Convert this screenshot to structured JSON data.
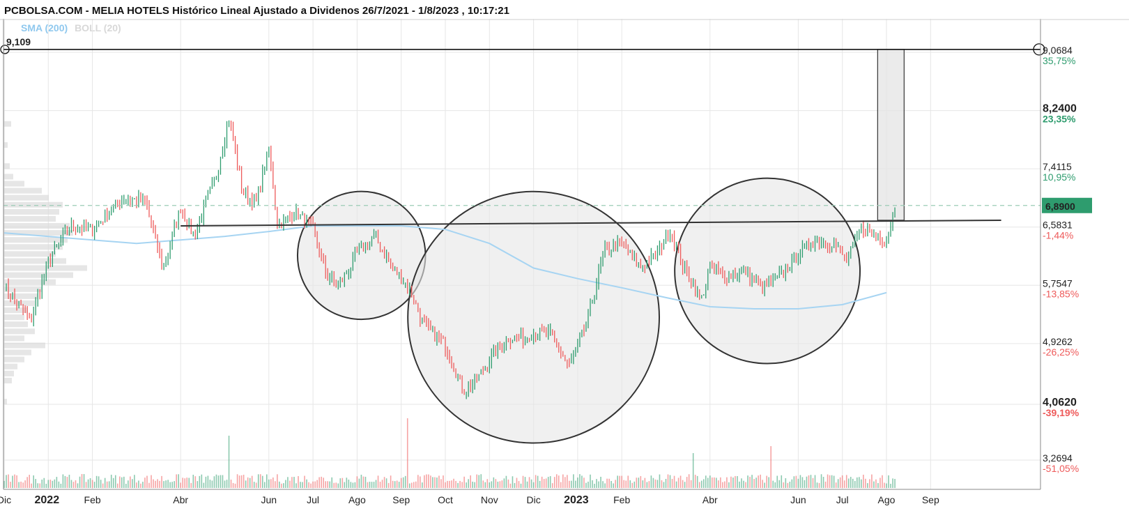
{
  "header": {
    "title": "PCBOLSA.COM - MELIA HOTELS Histórico Lineal Ajustado a Dividenos 26/7/2021 - 1/8/2023 , 10:17:21",
    "sma_label": "SMA (200)",
    "boll_label": "BOLL (20)"
  },
  "colors": {
    "up": "#2e9c6e",
    "down": "#ee5a5a",
    "sma": "#a6d4f2",
    "grid": "#e6e6e6",
    "price_tag": "#2e9c6e"
  },
  "chart_data": {
    "type": "candlestick",
    "title": "MELIA HOTELS Histórico Lineal Ajustado a Dividenos 26/7/2021 - 1/8/2023",
    "y_scale": "linear",
    "ylim": [
      3.0,
      9.35
    ],
    "x_axis": {
      "ticks": [
        {
          "label": "Dic",
          "month": 0,
          "bold": false
        },
        {
          "label": "2022",
          "month": 1,
          "bold": true
        },
        {
          "label": "Feb",
          "month": 2,
          "bold": false
        },
        {
          "label": "Abr",
          "month": 4,
          "bold": false
        },
        {
          "label": "Jun",
          "month": 6,
          "bold": false
        },
        {
          "label": "Jul",
          "month": 7,
          "bold": false
        },
        {
          "label": "Ago",
          "month": 8,
          "bold": false
        },
        {
          "label": "Sep",
          "month": 9,
          "bold": false
        },
        {
          "label": "Oct",
          "month": 10,
          "bold": false
        },
        {
          "label": "Nov",
          "month": 11,
          "bold": false
        },
        {
          "label": "Dic",
          "month": 12,
          "bold": false
        },
        {
          "label": "2023",
          "month": 13,
          "bold": true
        },
        {
          "label": "Feb",
          "month": 14,
          "bold": false
        },
        {
          "label": "Abr",
          "month": 16,
          "bold": false
        },
        {
          "label": "Jun",
          "month": 18,
          "bold": false
        },
        {
          "label": "Jul",
          "month": 19,
          "bold": false
        },
        {
          "label": "Ago",
          "month": 20,
          "bold": false
        },
        {
          "label": "Sep",
          "month": 21,
          "bold": false
        }
      ]
    },
    "y_ticks": [
      {
        "value": 9.0684,
        "label": "9,0684",
        "pct": "35,75%",
        "bold": false
      },
      {
        "value": 8.24,
        "label": "8,2400",
        "pct": "23,35%",
        "bold": true
      },
      {
        "value": 7.4115,
        "label": "7,4115",
        "pct": "10,95%",
        "bold": false
      },
      {
        "value": 6.5831,
        "label": "6,5831",
        "pct": "-1,44%",
        "bold": false
      },
      {
        "value": 5.7547,
        "label": "5,7547",
        "pct": "-13,85%",
        "bold": false
      },
      {
        "value": 4.9262,
        "label": "4,9262",
        "pct": "-26,25%",
        "bold": false
      },
      {
        "value": 4.062,
        "label": "4,0620",
        "pct": "-39,19%",
        "bold": true
      },
      {
        "value": 3.2694,
        "label": "3,2694",
        "pct": "-51,05%",
        "bold": false
      }
    ],
    "last_price": {
      "value": 6.89,
      "label": "6,8900"
    },
    "target_level": {
      "value": 9.109,
      "label": "9,109"
    },
    "anchors": [
      {
        "month": 0.0,
        "close": 5.75
      },
      {
        "month": 0.6,
        "close": 5.25
      },
      {
        "month": 1.0,
        "close": 6.1
      },
      {
        "month": 1.5,
        "close": 6.6
      },
      {
        "month": 2.0,
        "close": 6.55
      },
      {
        "month": 2.7,
        "close": 7.0
      },
      {
        "month": 3.2,
        "close": 6.95
      },
      {
        "month": 3.6,
        "close": 6.0
      },
      {
        "month": 4.0,
        "close": 6.85
      },
      {
        "month": 4.3,
        "close": 6.45
      },
      {
        "month": 4.8,
        "close": 7.3
      },
      {
        "month": 5.1,
        "close": 8.15
      },
      {
        "month": 5.4,
        "close": 7.1
      },
      {
        "month": 5.7,
        "close": 6.9
      },
      {
        "month": 6.0,
        "close": 7.7
      },
      {
        "month": 6.2,
        "close": 6.6
      },
      {
        "month": 6.6,
        "close": 6.8
      },
      {
        "month": 7.0,
        "close": 6.55
      },
      {
        "month": 7.3,
        "close": 5.9
      },
      {
        "month": 7.6,
        "close": 5.75
      },
      {
        "month": 8.0,
        "close": 6.2
      },
      {
        "month": 8.4,
        "close": 6.45
      },
      {
        "month": 8.8,
        "close": 6.0
      },
      {
        "month": 9.2,
        "close": 5.7
      },
      {
        "month": 9.5,
        "close": 5.2
      },
      {
        "month": 10.0,
        "close": 4.9
      },
      {
        "month": 10.4,
        "close": 4.25
      },
      {
        "month": 10.7,
        "close": 4.4
      },
      {
        "month": 11.0,
        "close": 4.7
      },
      {
        "month": 11.4,
        "close": 5.0
      },
      {
        "month": 11.8,
        "close": 5.0
      },
      {
        "month": 12.0,
        "close": 5.1
      },
      {
        "month": 12.4,
        "close": 5.05
      },
      {
        "month": 12.8,
        "close": 4.6
      },
      {
        "month": 13.2,
        "close": 5.2
      },
      {
        "month": 13.6,
        "close": 6.25
      },
      {
        "month": 14.0,
        "close": 6.35
      },
      {
        "month": 14.4,
        "close": 6.0
      },
      {
        "month": 14.8,
        "close": 6.2
      },
      {
        "month": 15.1,
        "close": 6.55
      },
      {
        "month": 15.4,
        "close": 6.0
      },
      {
        "month": 15.8,
        "close": 5.55
      },
      {
        "month": 16.0,
        "close": 6.0
      },
      {
        "month": 16.4,
        "close": 5.9
      },
      {
        "month": 16.8,
        "close": 5.95
      },
      {
        "month": 17.2,
        "close": 5.7
      },
      {
        "month": 17.6,
        "close": 5.9
      },
      {
        "month": 18.0,
        "close": 6.2
      },
      {
        "month": 18.4,
        "close": 6.4
      },
      {
        "month": 18.8,
        "close": 6.35
      },
      {
        "month": 19.1,
        "close": 6.1
      },
      {
        "month": 19.4,
        "close": 6.55
      },
      {
        "month": 19.7,
        "close": 6.5
      },
      {
        "month": 20.0,
        "close": 6.4
      },
      {
        "month": 20.2,
        "close": 6.89
      }
    ],
    "sma_200": [
      {
        "month": 0.0,
        "value": 6.5
      },
      {
        "month": 2.0,
        "value": 6.4
      },
      {
        "month": 3.0,
        "value": 6.35
      },
      {
        "month": 4.0,
        "value": 6.4
      },
      {
        "month": 5.0,
        "value": 6.45
      },
      {
        "month": 6.0,
        "value": 6.52
      },
      {
        "month": 7.0,
        "value": 6.6
      },
      {
        "month": 8.0,
        "value": 6.6
      },
      {
        "month": 9.0,
        "value": 6.6
      },
      {
        "month": 10.0,
        "value": 6.55
      },
      {
        "month": 11.0,
        "value": 6.35
      },
      {
        "month": 12.0,
        "value": 6.0
      },
      {
        "month": 13.0,
        "value": 5.85
      },
      {
        "month": 14.0,
        "value": 5.72
      },
      {
        "month": 15.0,
        "value": 5.58
      },
      {
        "month": 16.0,
        "value": 5.45
      },
      {
        "month": 17.0,
        "value": 5.42
      },
      {
        "month": 18.0,
        "value": 5.42
      },
      {
        "month": 19.0,
        "value": 5.48
      },
      {
        "month": 20.0,
        "value": 5.65
      }
    ],
    "neckline": {
      "from": {
        "month": 4.0,
        "value": 6.6
      },
      "to": {
        "month": 22.6,
        "value": 6.68
      }
    },
    "projection_box": {
      "from_month": 19.8,
      "to_month": 20.4,
      "low": 6.68,
      "high": 9.109
    },
    "circles": [
      {
        "center_month": 8.1,
        "center_value": 6.18,
        "radius_months": 1.45
      },
      {
        "center_month": 12.0,
        "center_value": 5.3,
        "radius_months": 2.85
      },
      {
        "center_month": 17.3,
        "center_value": 5.96,
        "radius_months": 2.1
      }
    ],
    "volume_profile": [
      {
        "value": 8.05,
        "size": 0.11
      },
      {
        "value": 7.75,
        "size": 0.06
      },
      {
        "value": 7.45,
        "size": 0.09
      },
      {
        "value": 7.3,
        "size": 0.14
      },
      {
        "value": 7.2,
        "size": 0.3
      },
      {
        "value": 7.1,
        "size": 0.55
      },
      {
        "value": 7.0,
        "size": 0.65
      },
      {
        "value": 6.9,
        "size": 0.85
      },
      {
        "value": 6.8,
        "size": 0.8
      },
      {
        "value": 6.7,
        "size": 0.75
      },
      {
        "value": 6.6,
        "size": 0.95
      },
      {
        "value": 6.5,
        "size": 1.0
      },
      {
        "value": 6.4,
        "size": 0.92
      },
      {
        "value": 6.3,
        "size": 0.85
      },
      {
        "value": 6.2,
        "size": 0.75
      },
      {
        "value": 6.1,
        "size": 0.9
      },
      {
        "value": 6.0,
        "size": 1.2
      },
      {
        "value": 5.9,
        "size": 1.0
      },
      {
        "value": 5.8,
        "size": 0.75
      },
      {
        "value": 5.7,
        "size": 0.55
      },
      {
        "value": 5.6,
        "size": 0.5
      },
      {
        "value": 5.5,
        "size": 0.45
      },
      {
        "value": 5.4,
        "size": 0.35
      },
      {
        "value": 5.3,
        "size": 0.3
      },
      {
        "value": 5.2,
        "size": 0.35
      },
      {
        "value": 5.1,
        "size": 0.45
      },
      {
        "value": 5.0,
        "size": 0.3
      },
      {
        "value": 4.9,
        "size": 0.6
      },
      {
        "value": 4.8,
        "size": 0.4
      },
      {
        "value": 4.7,
        "size": 0.3
      },
      {
        "value": 4.6,
        "size": 0.2
      },
      {
        "value": 4.5,
        "size": 0.15
      },
      {
        "value": 4.4,
        "size": 0.12
      },
      {
        "value": 4.1,
        "size": 0.05
      }
    ],
    "volume_spikes": [
      {
        "month": 5.1,
        "relative": 0.75
      },
      {
        "month": 9.15,
        "relative": 1.0
      },
      {
        "month": 17.4,
        "relative": 0.6
      },
      {
        "month": 15.6,
        "relative": 0.5
      }
    ]
  }
}
